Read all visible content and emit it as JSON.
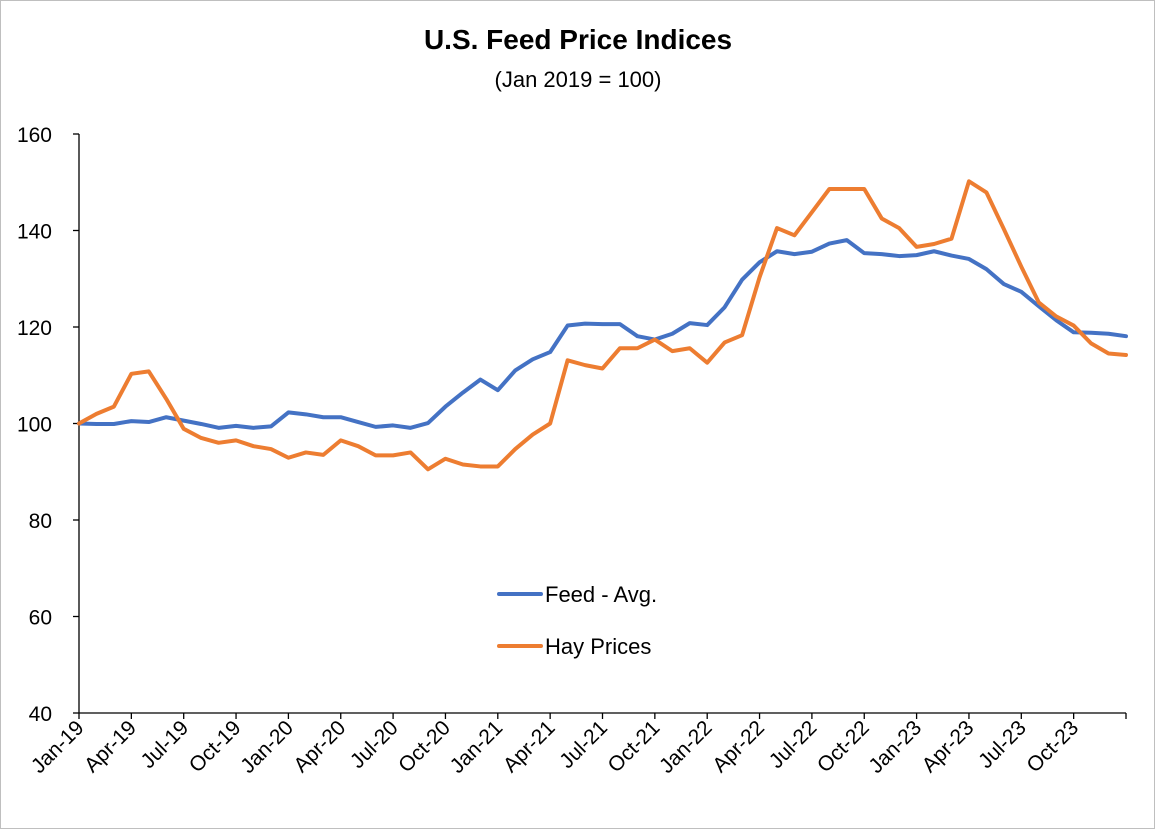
{
  "chart_data": {
    "type": "line",
    "title": "U.S. Feed Price Indices",
    "subtitle": "(Jan 2019 = 100)",
    "xlabel": "",
    "ylabel": "",
    "ylim": [
      40,
      160
    ],
    "yticks": [
      40,
      60,
      80,
      100,
      120,
      140,
      160
    ],
    "grid": false,
    "legend_position": "center-bottom",
    "x_tick_labels": [
      "Jan-19",
      "Apr-19",
      "Jul-19",
      "Oct-19",
      "Jan-20",
      "Apr-20",
      "Jul-20",
      "Oct-20",
      "Jan-21",
      "Apr-21",
      "Jul-21",
      "Oct-21",
      "Jan-22",
      "Apr-22",
      "Jul-22",
      "Oct-22",
      "Jan-23",
      "Apr-23",
      "Jul-23",
      "Oct-23"
    ],
    "x": [
      "Jan-19",
      "Feb-19",
      "Mar-19",
      "Apr-19",
      "May-19",
      "Jun-19",
      "Jul-19",
      "Aug-19",
      "Sep-19",
      "Oct-19",
      "Nov-19",
      "Dec-19",
      "Jan-20",
      "Feb-20",
      "Mar-20",
      "Apr-20",
      "May-20",
      "Jun-20",
      "Jul-20",
      "Aug-20",
      "Sep-20",
      "Oct-20",
      "Nov-20",
      "Dec-20",
      "Jan-21",
      "Feb-21",
      "Mar-21",
      "Apr-21",
      "May-21",
      "Jun-21",
      "Jul-21",
      "Aug-21",
      "Sep-21",
      "Oct-21",
      "Nov-21",
      "Dec-21",
      "Jan-22",
      "Feb-22",
      "Mar-22",
      "Apr-22",
      "May-22",
      "Jun-22",
      "Jul-22",
      "Aug-22",
      "Sep-22",
      "Oct-22",
      "Nov-22",
      "Dec-22",
      "Jan-23",
      "Feb-23",
      "Mar-23",
      "Apr-23",
      "May-23",
      "Jun-23",
      "Jul-23",
      "Aug-23",
      "Sep-23",
      "Oct-23",
      "Nov-23",
      "Dec-23",
      "Jan-24"
    ],
    "series": [
      {
        "name": "Feed - Avg.",
        "color": "#4472C4",
        "values": [
          100,
          99.9,
          99.9,
          100.5,
          100.3,
          101.3,
          100.6,
          99.9,
          99.1,
          99.5,
          99.1,
          99.4,
          102.3,
          101.9,
          101.3,
          101.3,
          100.3,
          99.3,
          99.6,
          99.1,
          100.1,
          103.5,
          106.4,
          109.1,
          106.9,
          111,
          113.3,
          114.8,
          120.3,
          120.7,
          120.6,
          120.6,
          118.1,
          117.4,
          118.6,
          120.8,
          120.4,
          124.1,
          129.8,
          133.4,
          135.7,
          135.1,
          135.6,
          137.3,
          138,
          135.3,
          135.1,
          134.7,
          134.9,
          135.7,
          134.8,
          134.1,
          132,
          128.9,
          127.3,
          124.3,
          121.4,
          118.9,
          118.8,
          118.6,
          118.1
        ]
      },
      {
        "name": "Hay Prices",
        "color": "#ED7D31",
        "values": [
          100,
          102,
          103.5,
          110.3,
          110.8,
          105.1,
          98.9,
          97,
          96,
          96.5,
          95.3,
          94.7,
          92.9,
          94,
          93.5,
          96.5,
          95.3,
          93.4,
          93.4,
          94,
          90.5,
          92.7,
          91.5,
          91.1,
          91.1,
          94.7,
          97.7,
          100,
          113.1,
          112.1,
          111.4,
          115.6,
          115.6,
          117.4,
          115,
          115.6,
          112.6,
          116.8,
          118.3,
          130.3,
          140.5,
          139,
          143.8,
          148.6,
          148.6,
          148.6,
          142.5,
          140.5,
          136.6,
          137.2,
          138.3,
          150.2,
          147.9,
          140.3,
          132.5,
          125.1,
          122.2,
          120.3,
          116.6,
          114.5,
          114.2
        ]
      }
    ]
  }
}
